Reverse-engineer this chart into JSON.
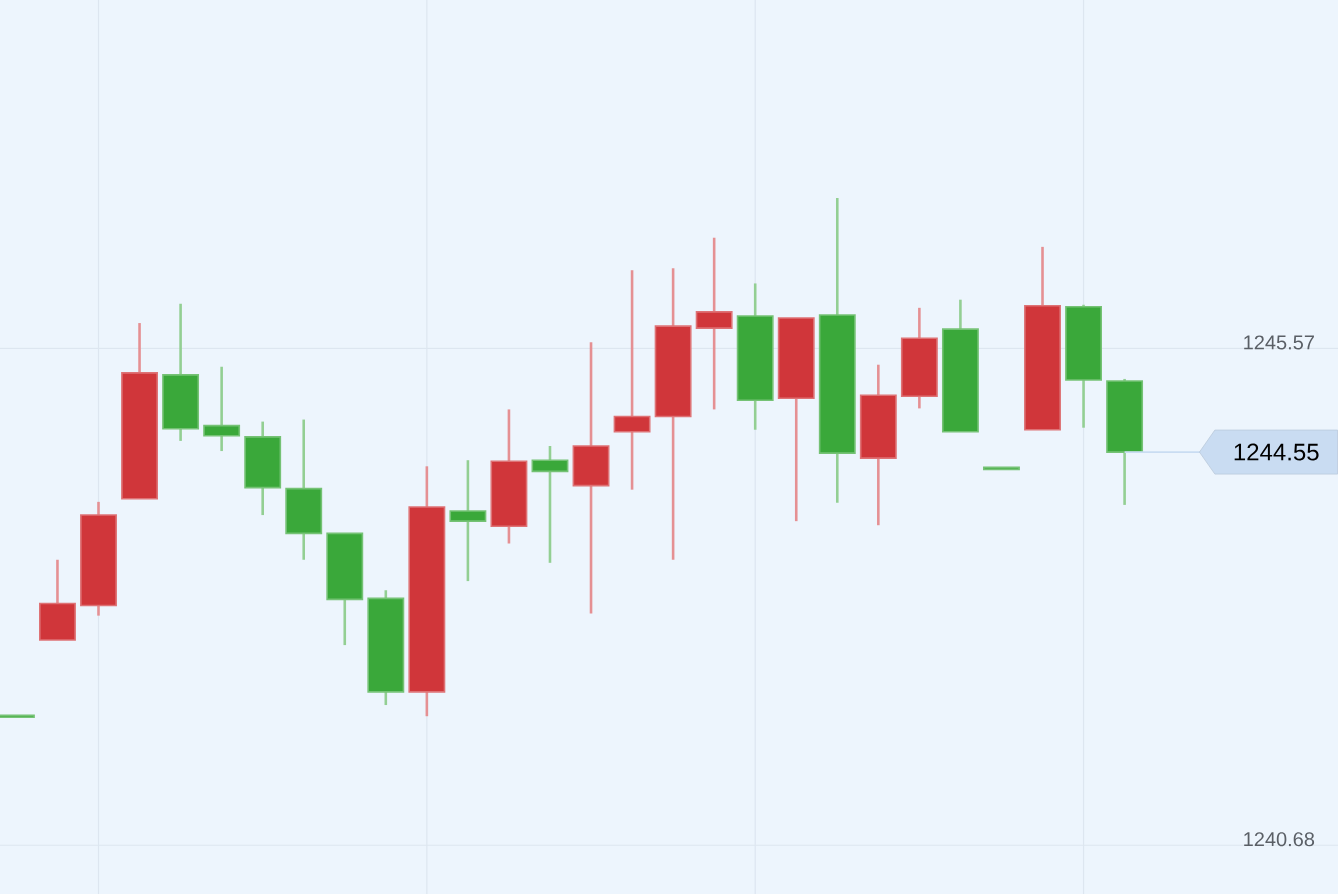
{
  "chart_data": {
    "type": "candlestick",
    "categories": [
      null,
      null,
      null,
      null,
      null,
      null,
      null,
      null,
      null,
      null,
      null,
      null,
      null,
      null,
      null,
      null,
      null,
      null,
      null,
      null,
      null,
      null,
      null,
      null,
      null,
      null,
      null,
      null
    ],
    "ohlc": [
      [
        1241.96,
        1241.96,
        1241.94,
        1241.94
      ],
      [
        1242.7,
        1243.49,
        1242.7,
        1243.06
      ],
      [
        1243.04,
        1244.06,
        1242.94,
        1243.93
      ],
      [
        1244.09,
        1245.82,
        1244.09,
        1245.33
      ],
      [
        1245.31,
        1246.01,
        1244.66,
        1244.78
      ],
      [
        1244.81,
        1245.39,
        1244.56,
        1244.71
      ],
      [
        1244.7,
        1244.85,
        1243.93,
        1244.2
      ],
      [
        1244.19,
        1244.87,
        1243.49,
        1243.75
      ],
      [
        1243.75,
        1243.75,
        1242.65,
        1243.1
      ],
      [
        1243.11,
        1243.19,
        1242.06,
        1242.19
      ],
      [
        1242.19,
        1244.41,
        1241.95,
        1244.01
      ],
      [
        1243.97,
        1244.47,
        1243.28,
        1243.87
      ],
      [
        1243.82,
        1244.97,
        1243.65,
        1244.46
      ],
      [
        1244.47,
        1244.61,
        1243.46,
        1244.36
      ],
      [
        1244.22,
        1245.63,
        1242.96,
        1244.61
      ],
      [
        1244.75,
        1246.34,
        1244.18,
        1244.9
      ],
      [
        1244.9,
        1246.36,
        1243.49,
        1245.79
      ],
      [
        1245.77,
        1246.66,
        1244.97,
        1245.93
      ],
      [
        1245.89,
        1246.21,
        1244.77,
        1245.06
      ],
      [
        1245.08,
        1245.87,
        1243.87,
        1245.87
      ],
      [
        1245.9,
        1247.05,
        1244.05,
        1244.54
      ],
      [
        1244.49,
        1245.41,
        1243.83,
        1245.11
      ],
      [
        1245.1,
        1245.97,
        1244.98,
        1245.67
      ],
      [
        1245.76,
        1246.05,
        1244.75,
        1244.75
      ],
      [
        1244.4,
        1244.4,
        1244.38,
        1244.38
      ],
      [
        1244.77,
        1246.57,
        1244.77,
        1245.99
      ],
      [
        1245.98,
        1246.0,
        1244.79,
        1245.26
      ],
      [
        1245.25,
        1245.27,
        1244.03,
        1244.55
      ]
    ],
    "colors": [
      "#3aa83a",
      "#d0363a",
      "#d0363a",
      "#d0363a",
      "#3aa83a",
      "#3aa83a",
      "#3aa83a",
      "#3aa83a",
      "#3aa83a",
      "#3aa83a",
      "#d0363a",
      "#3aa83a",
      "#d0363a",
      "#3aa83a",
      "#d0363a",
      "#d0363a",
      "#d0363a",
      "#d0363a",
      "#3aa83a",
      "#d0363a",
      "#3aa83a",
      "#d0363a",
      "#d0363a",
      "#3aa83a",
      "#3aa83a",
      "#d0363a",
      "#3aa83a",
      "#3aa83a"
    ],
    "ylim": [
      1240.2,
      1249.0
    ],
    "yticks": [
      1240.68,
      1245.57
    ],
    "grid": true,
    "ref_lines": [
      {
        "axis": "y",
        "value": 1244.55,
        "label": "1244.55",
        "color": "#c9dcf2"
      }
    ]
  }
}
